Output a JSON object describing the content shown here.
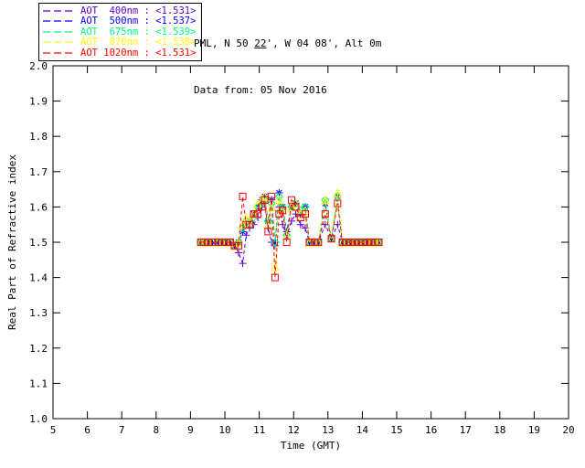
{
  "header": {
    "location": "PML, N 50 22', W 04 08', Alt 0m",
    "underlined_fragment": "22",
    "date_line": "Data from: 05 Nov 2016"
  },
  "chart_data": {
    "type": "line",
    "title": "",
    "xlabel": "Time (GMT)",
    "ylabel": "Real Part of Refractive index",
    "xlim": [
      5,
      20
    ],
    "ylim": [
      1.0,
      2.0
    ],
    "xtick_step": 1,
    "ytick_step": 0.1,
    "grid": false,
    "legend_position": "top-left-outside",
    "line_style": "dashed",
    "axis_color": "#000000",
    "x": [
      9.3,
      9.4,
      9.52,
      9.64,
      9.8,
      9.92,
      10.04,
      10.16,
      10.28,
      10.4,
      10.52,
      10.62,
      10.72,
      10.84,
      10.96,
      11.08,
      11.16,
      11.26,
      11.36,
      11.46,
      11.58,
      11.68,
      11.8,
      11.94,
      12.06,
      12.2,
      12.34,
      12.46,
      12.6,
      12.72,
      12.92,
      13.1,
      13.28,
      13.42,
      13.54,
      13.66,
      13.78,
      13.9,
      14.02,
      14.14,
      14.26,
      14.38,
      14.48
    ],
    "series": [
      {
        "name": "AOT 400nm",
        "legend_label": "AOT  400nm : <1.531>",
        "retrieved_value": "1.531",
        "color": "#5A00C8",
        "marker": "plus",
        "y": [
          1.5,
          1.5,
          1.5,
          1.5,
          1.5,
          1.5,
          1.5,
          1.5,
          1.49,
          1.47,
          1.44,
          1.52,
          1.54,
          1.55,
          1.57,
          1.6,
          1.61,
          1.54,
          1.5,
          1.49,
          1.6,
          1.55,
          1.52,
          1.56,
          1.58,
          1.55,
          1.54,
          1.5,
          1.5,
          1.5,
          1.55,
          1.51,
          1.55,
          1.5,
          1.5,
          1.5,
          1.5,
          1.5,
          1.5,
          1.5,
          1.5,
          1.5,
          1.5
        ]
      },
      {
        "name": "AOT 500nm",
        "legend_label": "AOT  500nm : <1.537>",
        "retrieved_value": "1.537",
        "color": "#0000FF",
        "marker": "asterisk",
        "y": [
          1.5,
          1.5,
          1.5,
          1.5,
          1.5,
          1.5,
          1.5,
          1.5,
          1.49,
          1.5,
          1.53,
          1.55,
          1.56,
          1.58,
          1.6,
          1.62,
          1.63,
          1.56,
          1.62,
          1.5,
          1.64,
          1.6,
          1.53,
          1.6,
          1.61,
          1.58,
          1.6,
          1.5,
          1.5,
          1.5,
          1.61,
          1.51,
          1.63,
          1.5,
          1.5,
          1.5,
          1.5,
          1.5,
          1.5,
          1.5,
          1.5,
          1.5,
          1.5
        ]
      },
      {
        "name": "AOT 675nm",
        "legend_label": "AOT  675nm : <1.539>",
        "retrieved_value": "1.539",
        "color": "#00FA7D",
        "marker": "diamond",
        "y": [
          1.5,
          1.5,
          1.5,
          1.5,
          1.5,
          1.5,
          1.5,
          1.5,
          1.49,
          1.5,
          1.54,
          1.56,
          1.55,
          1.57,
          1.6,
          1.61,
          1.62,
          1.56,
          1.61,
          1.5,
          1.63,
          1.6,
          1.52,
          1.6,
          1.61,
          1.59,
          1.6,
          1.5,
          1.5,
          1.5,
          1.62,
          1.51,
          1.63,
          1.5,
          1.5,
          1.5,
          1.5,
          1.5,
          1.5,
          1.5,
          1.5,
          1.5,
          1.5
        ]
      },
      {
        "name": "AOT 870nm",
        "legend_label": "AOT  870nm : <1.538>",
        "retrieved_value": "1.538",
        "color": "#FFFF00",
        "marker": "triangle",
        "y": [
          1.5,
          1.5,
          1.5,
          1.5,
          1.5,
          1.5,
          1.5,
          1.5,
          1.49,
          1.5,
          1.55,
          1.57,
          1.56,
          1.58,
          1.61,
          1.62,
          1.63,
          1.55,
          1.6,
          1.43,
          1.62,
          1.59,
          1.52,
          1.6,
          1.61,
          1.58,
          1.59,
          1.5,
          1.5,
          1.5,
          1.62,
          1.51,
          1.64,
          1.5,
          1.5,
          1.5,
          1.5,
          1.5,
          1.5,
          1.5,
          1.5,
          1.5,
          1.5
        ]
      },
      {
        "name": "AOT 1020nm",
        "legend_label": "AOT 1020nm : <1.531>",
        "retrieved_value": "1.531",
        "color": "#FF0000",
        "marker": "square",
        "y": [
          1.5,
          1.5,
          1.5,
          1.5,
          1.5,
          1.5,
          1.5,
          1.5,
          1.49,
          1.49,
          1.63,
          1.55,
          1.55,
          1.58,
          1.58,
          1.6,
          1.62,
          1.53,
          1.63,
          1.4,
          1.58,
          1.59,
          1.5,
          1.62,
          1.6,
          1.57,
          1.58,
          1.5,
          1.5,
          1.5,
          1.58,
          1.51,
          1.61,
          1.5,
          1.5,
          1.5,
          1.5,
          1.5,
          1.5,
          1.5,
          1.5,
          1.5,
          1.5
        ]
      }
    ]
  }
}
